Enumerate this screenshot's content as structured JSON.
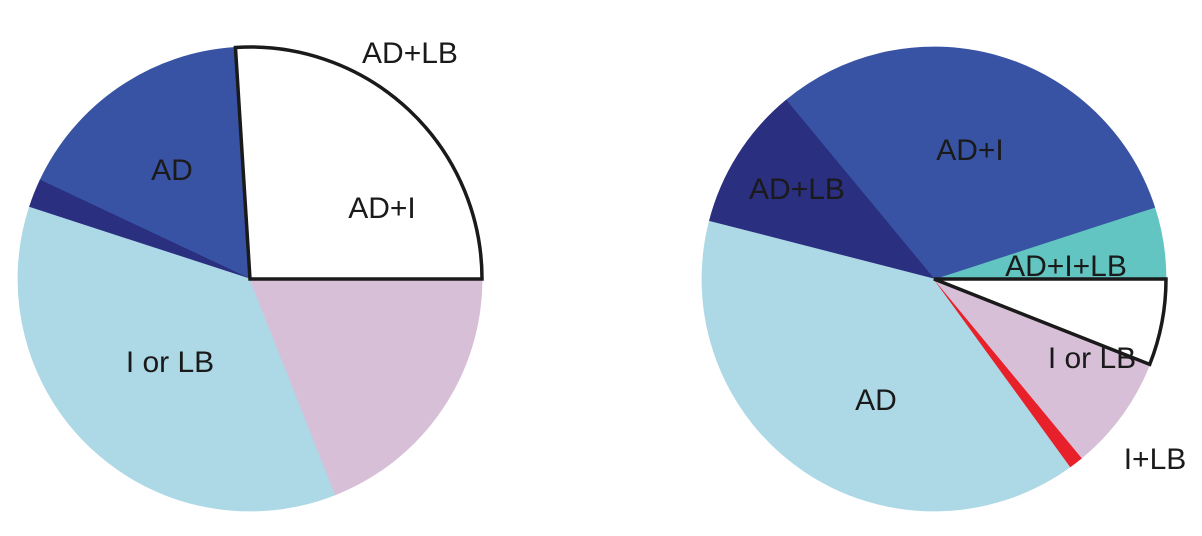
{
  "chart_data": [
    {
      "type": "pie",
      "labels": [
        "",
        "AD+I",
        "AD+LB",
        "AD",
        "I or LB"
      ],
      "values": [
        26,
        17,
        2,
        36,
        19
      ],
      "colors": [
        "#ffffff",
        "#3953a4",
        "#2a2f80",
        "#add8e6",
        "#d8bfd8"
      ],
      "outlined": [
        true,
        false,
        false,
        false,
        false
      ]
    },
    {
      "type": "pie",
      "labels": [
        "AD+I+LB",
        "AD+I",
        "AD+LB",
        "AD",
        "I+LB",
        "I or LB",
        ""
      ],
      "values": [
        5,
        31,
        10,
        39,
        1,
        8,
        6
      ],
      "colors": [
        "#62c5c1",
        "#3953a4",
        "#2a2f80",
        "#add8e6",
        "#e8202a",
        "#d8bfd8",
        "#ffffff"
      ],
      "outlined": [
        false,
        false,
        false,
        false,
        false,
        false,
        true
      ]
    }
  ]
}
